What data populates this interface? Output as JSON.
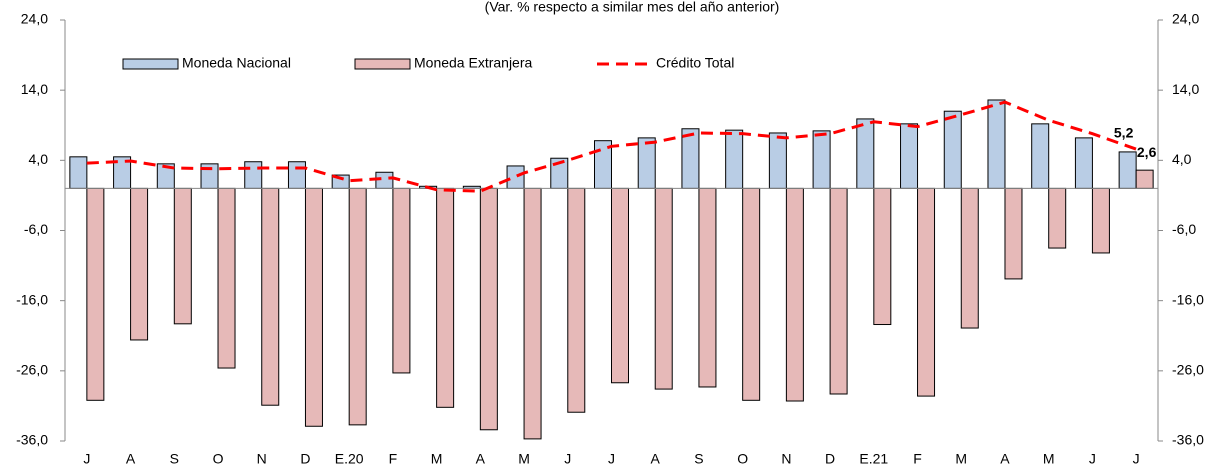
{
  "chart_data": {
    "type": "bar",
    "subtitle": "(Var. % respecto a similar mes del año anterior)",
    "categories": [
      "J",
      "A",
      "S",
      "O",
      "N",
      "D",
      "E.20",
      "F",
      "M",
      "A",
      "M",
      "J",
      "J",
      "A",
      "S",
      "O",
      "N",
      "D",
      "E.21",
      "F",
      "M",
      "A",
      "M",
      "J",
      "J"
    ],
    "series": [
      {
        "name": "Moneda Nacional",
        "color": "#b9cde5",
        "type": "bar",
        "values": [
          4.5,
          4.5,
          3.5,
          3.5,
          3.8,
          3.8,
          1.9,
          2.3,
          0.3,
          0.3,
          3.2,
          4.3,
          6.8,
          7.2,
          8.5,
          8.3,
          7.9,
          8.2,
          9.9,
          9.2,
          11.0,
          12.6,
          9.2,
          7.2,
          5.2
        ],
        "value_labels": [
          null,
          null,
          null,
          null,
          null,
          null,
          null,
          null,
          null,
          null,
          null,
          null,
          null,
          null,
          null,
          null,
          null,
          null,
          null,
          null,
          null,
          null,
          null,
          null,
          "5,2"
        ]
      },
      {
        "name": "Moneda Extranjera",
        "color": "#e6b9b8",
        "type": "bar",
        "values": [
          -30.2,
          -21.6,
          -19.3,
          -25.6,
          -30.9,
          -33.9,
          -33.7,
          -26.3,
          -31.2,
          -34.4,
          -35.7,
          -31.9,
          -27.7,
          -28.6,
          -28.3,
          -30.2,
          -30.3,
          -29.3,
          -19.4,
          -29.6,
          -19.9,
          -12.9,
          -8.5,
          -9.2,
          2.6
        ],
        "value_labels": [
          null,
          null,
          null,
          null,
          null,
          null,
          null,
          null,
          null,
          null,
          null,
          null,
          null,
          null,
          null,
          null,
          null,
          null,
          null,
          null,
          null,
          null,
          null,
          null,
          "2,6"
        ]
      },
      {
        "name": "Crédito Total",
        "color": "#ff0000",
        "type": "line",
        "values": [
          3.6,
          3.9,
          2.9,
          2.8,
          2.9,
          2.9,
          1.1,
          1.5,
          -0.2,
          -0.4,
          2.2,
          4.0,
          6.0,
          6.6,
          7.9,
          7.8,
          7.2,
          7.8,
          9.5,
          8.8,
          10.5,
          12.3,
          9.7,
          7.8,
          5.6
        ]
      }
    ],
    "ylim": [
      -36,
      24
    ],
    "yticks": [
      {
        "value": -36,
        "label": "-36,0"
      },
      {
        "value": -26,
        "label": "-26,0"
      },
      {
        "value": -16,
        "label": "-16,0"
      },
      {
        "value": -6,
        "label": "-6,0"
      },
      {
        "value": 4,
        "label": "4,0"
      },
      {
        "value": 14,
        "label": "14,0"
      },
      {
        "value": 24,
        "label": "24,0"
      }
    ],
    "y2lim": [
      -36,
      24
    ],
    "y2ticks": [
      {
        "value": -36,
        "label": "-36,0"
      },
      {
        "value": -26,
        "label": "-26,0"
      },
      {
        "value": -16,
        "label": "-16,0"
      },
      {
        "value": -6,
        "label": "-6,0"
      },
      {
        "value": 4,
        "label": "4,0"
      },
      {
        "value": 14,
        "label": "14,0"
      },
      {
        "value": 24,
        "label": "24,0"
      }
    ],
    "legend": "top"
  }
}
